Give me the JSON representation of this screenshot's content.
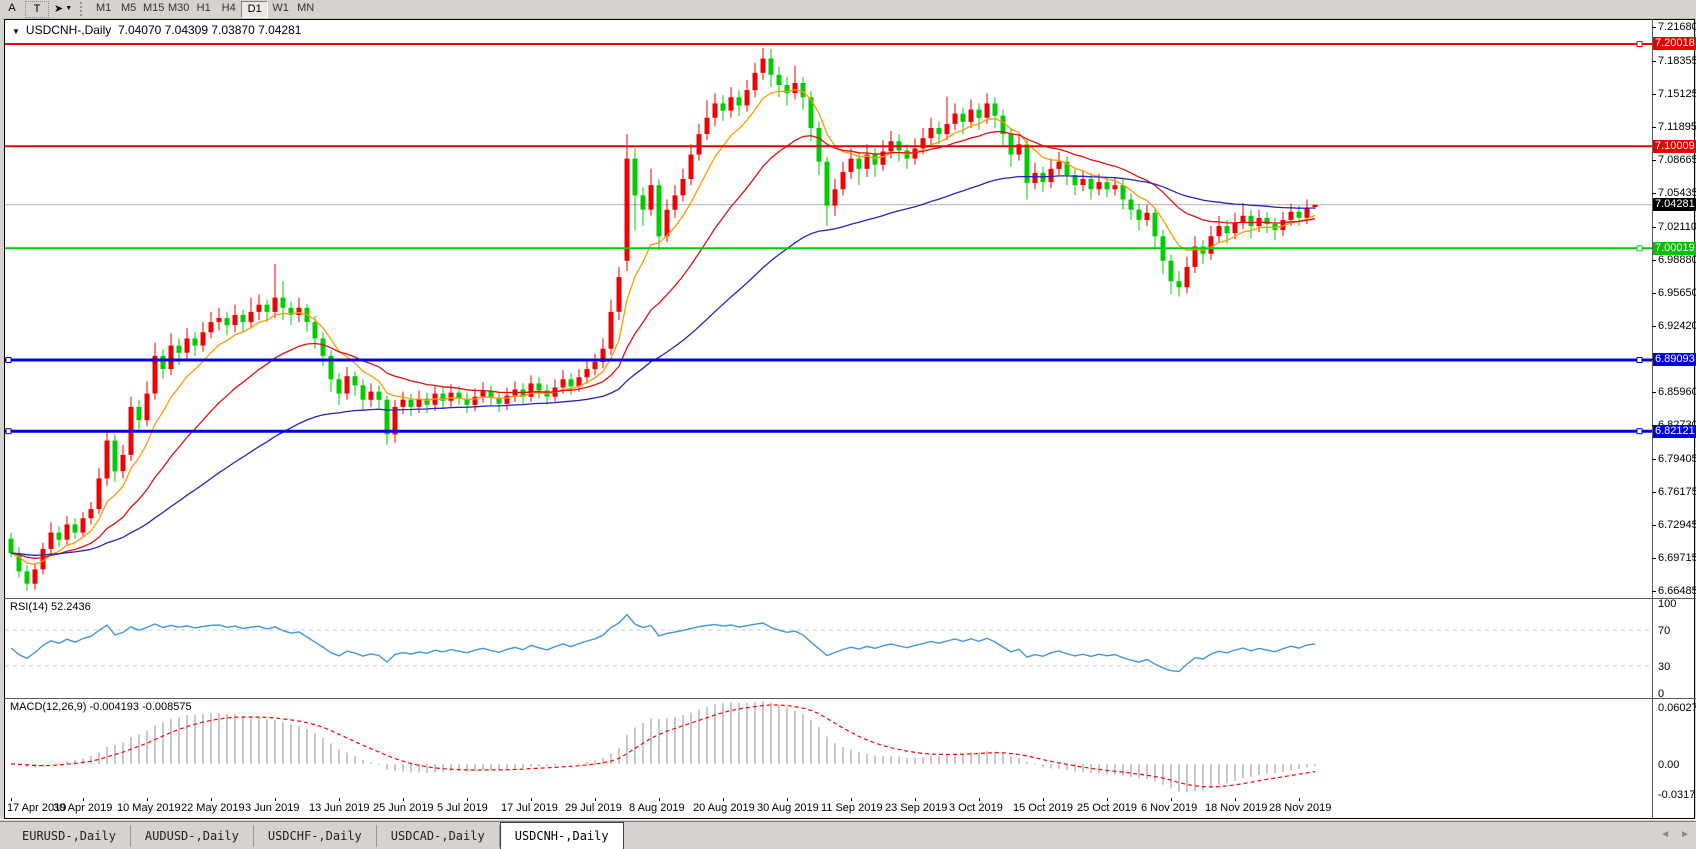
{
  "toolbar": {
    "tools": [
      {
        "id": "font",
        "label": "A"
      },
      {
        "id": "text",
        "label": "T"
      },
      {
        "id": "cursor",
        "label": "➤",
        "caret": "▼"
      }
    ],
    "timeframes": [
      "M1",
      "M5",
      "M15",
      "M30",
      "H1",
      "H4",
      "D1",
      "W1",
      "MN"
    ],
    "active_timeframe": "D1"
  },
  "chart": {
    "title": "USDCNH-,Daily",
    "title_marker": "▼",
    "ohlc_text": "7.04070 7.04309 7.03870 7.04281"
  },
  "panels": {
    "rsi_label": "RSI(14) 52.2436",
    "macd_label": "MACD(12,26,9) -0.004193 -0.008575"
  },
  "tabs": {
    "items": [
      "EURUSD-,Daily",
      "AUDUSD-,Daily",
      "USDCHF-,Daily",
      "USDCAD-,Daily",
      "USDCNH-,Daily"
    ],
    "active": "USDCNH-,Daily",
    "scroll_arrows": [
      "◄",
      "►"
    ]
  },
  "chart_data": {
    "type": "candlestick",
    "symbol": "USDCNH-",
    "timeframe": "Daily",
    "current_bar": {
      "open": 7.0407,
      "high": 7.04309,
      "low": 7.0387,
      "close": 7.04281
    },
    "up_color": "#f40000",
    "down_color": "#00cc00",
    "candles": [
      [
        6.716,
        6.722,
        6.698,
        6.702
      ],
      [
        6.702,
        6.708,
        6.678,
        6.684
      ],
      [
        6.684,
        6.69,
        6.6649,
        6.672
      ],
      [
        6.672,
        6.692,
        6.666,
        6.686
      ],
      [
        6.686,
        6.712,
        6.681,
        6.706
      ],
      [
        6.706,
        6.732,
        6.7,
        6.722
      ],
      [
        6.722,
        6.728,
        6.708,
        6.715
      ],
      [
        6.715,
        6.738,
        6.71,
        6.73
      ],
      [
        6.73,
        6.736,
        6.716,
        6.722
      ],
      [
        6.722,
        6.742,
        6.717,
        6.736
      ],
      [
        6.736,
        6.752,
        6.73,
        6.745
      ],
      [
        6.745,
        6.785,
        6.74,
        6.775
      ],
      [
        6.775,
        6.822,
        6.768,
        6.812
      ],
      [
        6.812,
        6.818,
        6.772,
        6.782
      ],
      [
        6.782,
        6.808,
        6.775,
        6.798
      ],
      [
        6.798,
        6.855,
        6.792,
        6.845
      ],
      [
        6.845,
        6.852,
        6.82,
        6.832
      ],
      [
        6.832,
        6.87,
        6.826,
        6.858
      ],
      [
        6.858,
        6.908,
        6.852,
        6.895
      ],
      [
        6.895,
        6.902,
        6.872,
        6.882
      ],
      [
        6.882,
        6.917,
        6.876,
        6.905
      ],
      [
        6.905,
        6.912,
        6.886,
        6.898
      ],
      [
        6.898,
        6.922,
        6.892,
        6.912
      ],
      [
        6.912,
        6.918,
        6.895,
        6.905
      ],
      [
        6.905,
        6.928,
        6.899,
        6.918
      ],
      [
        6.918,
        6.938,
        6.912,
        6.928
      ],
      [
        6.928,
        6.942,
        6.92,
        6.932
      ],
      [
        6.932,
        6.938,
        6.915,
        6.925
      ],
      [
        6.925,
        6.945,
        6.918,
        6.935
      ],
      [
        6.935,
        6.94,
        6.918,
        6.928
      ],
      [
        6.928,
        6.952,
        6.922,
        6.938
      ],
      [
        6.938,
        6.955,
        6.93,
        6.945
      ],
      [
        6.945,
        6.95,
        6.928,
        6.938
      ],
      [
        6.938,
        6.985,
        6.932,
        6.952
      ],
      [
        6.952,
        6.968,
        6.93,
        6.942
      ],
      [
        6.942,
        6.948,
        6.925,
        6.935
      ],
      [
        6.935,
        6.952,
        6.928,
        6.942
      ],
      [
        6.942,
        6.946,
        6.918,
        6.928
      ],
      [
        6.928,
        6.934,
        6.902,
        6.912
      ],
      [
        6.912,
        6.918,
        6.885,
        6.895
      ],
      [
        6.895,
        6.9,
        6.86,
        6.872
      ],
      [
        6.872,
        6.878,
        6.847,
        6.858
      ],
      [
        6.858,
        6.884,
        6.852,
        6.875
      ],
      [
        6.875,
        6.88,
        6.856,
        6.866
      ],
      [
        6.866,
        6.872,
        6.842,
        6.852
      ],
      [
        6.852,
        6.868,
        6.845,
        6.86
      ],
      [
        6.86,
        6.866,
        6.844,
        6.852
      ],
      [
        6.852,
        6.856,
        6.808,
        6.818
      ],
      [
        6.818,
        6.852,
        6.81,
        6.845
      ],
      [
        6.845,
        6.86,
        6.838,
        6.852
      ],
      [
        6.852,
        6.858,
        6.836,
        6.845
      ],
      [
        6.845,
        6.861,
        6.839,
        6.853
      ],
      [
        6.853,
        6.859,
        6.839,
        6.847
      ],
      [
        6.847,
        6.866,
        6.841,
        6.858
      ],
      [
        6.858,
        6.864,
        6.843,
        6.851
      ],
      [
        6.851,
        6.867,
        6.845,
        6.859
      ],
      [
        6.859,
        6.865,
        6.847,
        6.853
      ],
      [
        6.853,
        6.859,
        6.839,
        6.847
      ],
      [
        6.847,
        6.863,
        6.841,
        6.855
      ],
      [
        6.855,
        6.869,
        6.849,
        6.861
      ],
      [
        6.861,
        6.866,
        6.846,
        6.854
      ],
      [
        6.854,
        6.86,
        6.84,
        6.848
      ],
      [
        6.848,
        6.864,
        6.842,
        6.856
      ],
      [
        6.856,
        6.87,
        6.85,
        6.862
      ],
      [
        6.862,
        6.868,
        6.848,
        6.855
      ],
      [
        6.855,
        6.876,
        6.85,
        6.868
      ],
      [
        6.868,
        6.874,
        6.853,
        6.861
      ],
      [
        6.861,
        6.867,
        6.847,
        6.855
      ],
      [
        6.855,
        6.872,
        6.85,
        6.864
      ],
      [
        6.864,
        6.881,
        6.858,
        6.872
      ],
      [
        6.872,
        6.878,
        6.857,
        6.865
      ],
      [
        6.865,
        6.882,
        6.86,
        6.874
      ],
      [
        6.874,
        6.891,
        6.868,
        6.882
      ],
      [
        6.882,
        6.897,
        6.876,
        6.889
      ],
      [
        6.889,
        6.912,
        6.883,
        6.902
      ],
      [
        6.902,
        6.95,
        6.896,
        6.938
      ],
      [
        6.938,
        6.982,
        6.93,
        6.972
      ],
      [
        6.988,
        7.112,
        6.978,
        7.088
      ],
      [
        7.088,
        7.098,
        7.018,
        7.052
      ],
      [
        7.052,
        7.06,
        7.022,
        7.038
      ],
      [
        7.038,
        7.078,
        7.032,
        7.062
      ],
      [
        7.062,
        7.068,
        6.998,
        7.012
      ],
      [
        7.012,
        7.048,
        7.006,
        7.038
      ],
      [
        7.038,
        7.062,
        7.03,
        7.052
      ],
      [
        7.052,
        7.078,
        7.046,
        7.068
      ],
      [
        7.068,
        7.102,
        7.062,
        7.092
      ],
      [
        7.092,
        7.122,
        7.086,
        7.112
      ],
      [
        7.112,
        7.145,
        7.106,
        7.128
      ],
      [
        7.128,
        7.152,
        7.12,
        7.142
      ],
      [
        7.142,
        7.15,
        7.125,
        7.135
      ],
      [
        7.135,
        7.158,
        7.128,
        7.148
      ],
      [
        7.148,
        7.155,
        7.13,
        7.14
      ],
      [
        7.14,
        7.165,
        7.134,
        7.155
      ],
      [
        7.155,
        7.182,
        7.148,
        7.172
      ],
      [
        7.172,
        7.196,
        7.165,
        7.186
      ],
      [
        7.186,
        7.1955,
        7.158,
        7.17
      ],
      [
        7.17,
        7.178,
        7.148,
        7.16
      ],
      [
        7.16,
        7.168,
        7.14,
        7.152
      ],
      [
        7.152,
        7.179,
        7.146,
        7.162
      ],
      [
        7.162,
        7.168,
        7.136,
        7.148
      ],
      [
        7.148,
        7.154,
        7.105,
        7.118
      ],
      [
        7.118,
        7.124,
        7.072,
        7.085
      ],
      [
        7.085,
        7.09,
        7.022,
        7.042
      ],
      [
        7.042,
        7.068,
        7.032,
        7.058
      ],
      [
        7.058,
        7.085,
        7.052,
        7.075
      ],
      [
        7.075,
        7.098,
        7.068,
        7.088
      ],
      [
        7.088,
        7.094,
        7.062,
        7.078
      ],
      [
        7.078,
        7.102,
        7.07,
        7.092
      ],
      [
        7.092,
        7.098,
        7.07,
        7.082
      ],
      [
        7.082,
        7.106,
        7.076,
        7.095
      ],
      [
        7.095,
        7.115,
        7.088,
        7.105
      ],
      [
        7.105,
        7.112,
        7.085,
        7.096
      ],
      [
        7.096,
        7.102,
        7.078,
        7.088
      ],
      [
        7.088,
        7.108,
        7.082,
        7.098
      ],
      [
        7.098,
        7.118,
        7.092,
        7.108
      ],
      [
        7.108,
        7.128,
        7.102,
        7.118
      ],
      [
        7.118,
        7.124,
        7.102,
        7.112
      ],
      [
        7.112,
        7.1485,
        7.106,
        7.122
      ],
      [
        7.122,
        7.142,
        7.116,
        7.132
      ],
      [
        7.132,
        7.138,
        7.112,
        7.124
      ],
      [
        7.124,
        7.146,
        7.118,
        7.136
      ],
      [
        7.136,
        7.142,
        7.116,
        7.128
      ],
      [
        7.128,
        7.152,
        7.122,
        7.142
      ],
      [
        7.142,
        7.148,
        7.118,
        7.13
      ],
      [
        7.13,
        7.136,
        7.1,
        7.112
      ],
      [
        7.112,
        7.118,
        7.08,
        7.092
      ],
      [
        7.092,
        7.112,
        7.086,
        7.102
      ],
      [
        7.102,
        7.108,
        7.048,
        7.064
      ],
      [
        7.064,
        7.084,
        7.058,
        7.074
      ],
      [
        7.074,
        7.08,
        7.055,
        7.065
      ],
      [
        7.065,
        7.088,
        7.059,
        7.078
      ],
      [
        7.078,
        7.0945,
        7.072,
        7.085
      ],
      [
        7.085,
        7.09,
        7.062,
        7.072
      ],
      [
        7.072,
        7.078,
        7.052,
        7.062
      ],
      [
        7.062,
        7.076,
        7.056,
        7.068
      ],
      [
        7.068,
        7.074,
        7.048,
        7.058
      ],
      [
        7.058,
        7.073,
        7.052,
        7.065
      ],
      [
        7.065,
        7.07,
        7.05,
        7.058
      ],
      [
        7.058,
        7.07,
        7.052,
        7.062
      ],
      [
        7.062,
        7.068,
        7.038,
        7.048
      ],
      [
        7.048,
        7.054,
        7.028,
        7.038
      ],
      [
        7.038,
        7.044,
        7.018,
        7.028
      ],
      [
        7.028,
        7.043,
        7.022,
        7.035
      ],
      [
        7.035,
        7.04,
        7.0,
        7.012
      ],
      [
        7.012,
        7.018,
        6.975,
        6.988
      ],
      [
        6.988,
        6.994,
        6.9555,
        6.968
      ],
      [
        6.968,
        6.978,
        6.953,
        6.962
      ],
      [
        6.962,
        6.992,
        6.956,
        6.982
      ],
      [
        6.982,
        7.012,
        6.976,
        7.002
      ],
      [
        7.002,
        7.008,
        6.985,
        6.995
      ],
      [
        6.995,
        7.022,
        6.989,
        7.012
      ],
      [
        7.012,
        7.032,
        7.006,
        7.022
      ],
      [
        7.022,
        7.028,
        7.005,
        7.015
      ],
      [
        7.015,
        7.035,
        7.009,
        7.025
      ],
      [
        7.025,
        7.0445,
        7.019,
        7.032
      ],
      [
        7.032,
        7.038,
        7.01,
        7.022
      ],
      [
        7.022,
        7.038,
        7.016,
        7.03
      ],
      [
        7.03,
        7.036,
        7.015,
        7.024
      ],
      [
        7.024,
        7.03,
        7.008,
        7.018
      ],
      [
        7.018,
        7.036,
        7.012,
        7.028
      ],
      [
        7.028,
        7.044,
        7.022,
        7.036
      ],
      [
        7.036,
        7.042,
        7.022,
        7.03
      ],
      [
        7.03,
        7.048,
        7.024,
        7.04
      ],
      [
        7.0407,
        7.04309,
        7.0387,
        7.04281
      ]
    ],
    "moving_averages": [
      {
        "name": "MA fast",
        "period": 8,
        "color": "#ff9900"
      },
      {
        "name": "MA mid",
        "period": 21,
        "color": "#e01010"
      },
      {
        "name": "MA slow",
        "period": 55,
        "color": "#2525bb"
      }
    ],
    "hlines": [
      {
        "value": 7.20018,
        "color": "#f40000",
        "width": 2,
        "handle_right": true,
        "handle_left": false
      },
      {
        "value": 7.10009,
        "color": "#f40000",
        "width": 2,
        "handle_right": false,
        "handle_left": false
      },
      {
        "value": 7.00019,
        "color": "#00cc00",
        "width": 2,
        "handle_right": true,
        "handle_left": false
      },
      {
        "value": 6.89093,
        "color": "#0000e0",
        "width": 3,
        "handle_right": true,
        "handle_left": true
      },
      {
        "value": 6.82121,
        "color": "#0000e0",
        "width": 3,
        "handle_right": true,
        "handle_left": true
      }
    ],
    "current_price_line": {
      "value": 7.04281,
      "color": "#b4b4b4"
    },
    "price_axis": {
      "ticks": [
        "7.21680",
        "7.18355",
        "7.15125",
        "7.11895",
        "7.08665",
        "7.05435",
        "7.02110",
        "6.98880",
        "6.95650",
        "6.92420",
        "6.89190",
        "6.85960",
        "6.82730",
        "6.79405",
        "6.76175",
        "6.72945",
        "6.69715",
        "6.66485"
      ],
      "badges": [
        {
          "label": "7.20018",
          "value": 7.20018,
          "bg": "#e80000"
        },
        {
          "label": "7.10009",
          "value": 7.10009,
          "bg": "#e80000"
        },
        {
          "label": "7.04281",
          "value": 7.04281,
          "bg": "#000000"
        },
        {
          "label": "7.00019",
          "value": 7.00019,
          "bg": "#00c000"
        },
        {
          "label": "6.89093",
          "value": 6.89093,
          "bg": "#0000dd"
        },
        {
          "label": "6.82121",
          "value": 6.82121,
          "bg": "#0000dd"
        }
      ]
    },
    "time_axis": [
      {
        "label": "17 Apr 2019",
        "bar": 0
      },
      {
        "label": "30 Apr 2019",
        "bar": 9
      },
      {
        "label": "10 May 2019",
        "bar": 17
      },
      {
        "label": "22 May 2019",
        "bar": 25
      },
      {
        "label": "3 Jun 2019",
        "bar": 33
      },
      {
        "label": "13 Jun 2019",
        "bar": 41
      },
      {
        "label": "25 Jun 2019",
        "bar": 49
      },
      {
        "label": "5 Jul 2019",
        "bar": 57
      },
      {
        "label": "17 Jul 2019",
        "bar": 65
      },
      {
        "label": "29 Jul 2019",
        "bar": 73
      },
      {
        "label": "8 Aug 2019",
        "bar": 81
      },
      {
        "label": "20 Aug 2019",
        "bar": 89
      },
      {
        "label": "30 Aug 2019",
        "bar": 97
      },
      {
        "label": "11 Sep 2019",
        "bar": 105
      },
      {
        "label": "23 Sep 2019",
        "bar": 113
      },
      {
        "label": "3 Oct 2019",
        "bar": 121
      },
      {
        "label": "15 Oct 2019",
        "bar": 129
      },
      {
        "label": "25 Oct 2019",
        "bar": 137
      },
      {
        "label": "6 Nov 2019",
        "bar": 145
      },
      {
        "label": "18 Nov 2019",
        "bar": 153
      },
      {
        "label": "28 Nov 2019",
        "bar": 161
      }
    ],
    "rsi": {
      "period": 14,
      "value": "52.2436",
      "color": "#4496dc",
      "axis": [
        {
          "label": "100",
          "value": 100
        },
        {
          "label": "70",
          "value": 70
        },
        {
          "label": "30",
          "value": 30
        },
        {
          "label": "0",
          "value": 0
        }
      ],
      "dashed_levels": [
        70,
        30
      ]
    },
    "macd": {
      "fast": 12,
      "slow": 26,
      "signal": 9,
      "macd_value": "-0.004193",
      "signal_value": "-0.008575",
      "hist_color": "#b2b2b2",
      "signal_color": "#ff0000",
      "axis": [
        {
          "label": "0.060273",
          "value": 0.060273
        },
        {
          "label": "0.00",
          "value": 0
        },
        {
          "label": "-0.031725",
          "value": -0.031725
        }
      ]
    }
  }
}
